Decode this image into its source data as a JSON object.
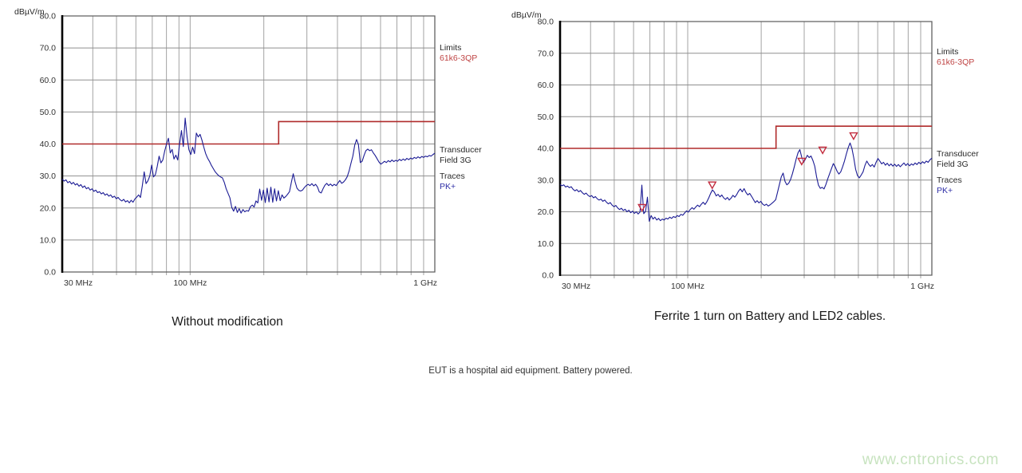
{
  "page": {
    "note": "EUT is a hospital aid equipment. Battery powered.",
    "watermark": "www.cntronics.com"
  },
  "colors": {
    "limit_red": "#b02b2b",
    "trace_blue": "#1b1b94",
    "marker_red": "#c22b3d",
    "legend_red": "#bf4444",
    "legend_blue": "#2f2fa6",
    "grid_h": "#8f8f8f",
    "grid_v": "#a3a3a3",
    "border": "#606060",
    "axis_black": "#000000",
    "watermark_green": "#c7e3bf"
  },
  "axis": {
    "unit_label": "dBµV/m",
    "y_ticks": [
      "80.0",
      "70.0",
      "60.0",
      "50.0",
      "40.0",
      "30.0",
      "20.0",
      "10.0",
      "0.0"
    ],
    "x_tick_labels": [
      "30 MHz",
      "100 MHz",
      "1 GHz"
    ],
    "decade_gridlines_MHz": [
      40,
      50,
      60,
      70,
      80,
      90,
      100,
      200,
      300,
      400,
      500,
      600,
      700,
      800,
      900
    ]
  },
  "legend": {
    "limits_label": "Limits",
    "limit_name": "61k6-3QP",
    "transducer_label": "Transducer",
    "transducer_name": "Field 3G",
    "traces_label": "Traces",
    "trace_name": "PK+"
  },
  "chart_data": [
    {
      "type": "line",
      "title": "Without modification",
      "x_axis": {
        "scale": "log",
        "min_MHz": 30,
        "max_MHz": 1000,
        "tick_labels": [
          "30 MHz",
          "100 MHz",
          "1 GHz"
        ]
      },
      "y_axis": {
        "label": "dBµV/m",
        "min": 0,
        "max": 80,
        "tick_step": 10
      },
      "limit": {
        "name": "61k6-3QP",
        "segments": [
          {
            "from_MHz": 30,
            "to_MHz": 230,
            "level_dB": 40
          },
          {
            "from_MHz": 230,
            "to_MHz": 1000,
            "level_dB": 47
          }
        ]
      },
      "trace": {
        "name": "PK+",
        "detector": "peak",
        "x_log_frac_start": 0.0,
        "x_log_frac_step": 0.005,
        "frequency_formula": "frequency_MHz = 30 * (1000/30)^x_log_frac",
        "levels_dB": [
          29.0,
          28.4,
          28.8,
          27.9,
          28.3,
          27.5,
          28.0,
          27.2,
          27.6,
          26.8,
          27.3,
          26.4,
          26.9,
          26.0,
          26.4,
          25.6,
          26.0,
          25.2,
          25.6,
          24.8,
          25.1,
          24.4,
          24.8,
          24.0,
          24.4,
          23.7,
          24.1,
          23.3,
          23.7,
          22.9,
          23.3,
          22.6,
          22.2,
          22.7,
          21.9,
          22.3,
          21.6,
          22.4,
          21.8,
          22.8,
          23.4,
          24.1,
          23.3,
          27.0,
          31.3,
          27.6,
          28.5,
          30.0,
          33.4,
          29.7,
          30.4,
          33.0,
          36.2,
          34.1,
          35.0,
          37.8,
          40.0,
          41.8,
          37.2,
          38.3,
          35.3,
          36.5,
          35.0,
          40.0,
          44.2,
          39.2,
          48.1,
          42.3,
          38.2,
          36.7,
          39.0,
          37.0,
          43.4,
          42.2,
          43.0,
          41.2,
          39.0,
          37.0,
          35.6,
          34.6,
          33.4,
          32.4,
          31.4,
          30.7,
          30.1,
          29.7,
          29.4,
          28.0,
          26.0,
          24.6,
          23.2,
          20.2,
          19.0,
          20.5,
          18.6,
          19.8,
          18.4,
          19.5,
          18.8,
          19.2,
          19.0,
          20.4,
          20.9,
          20.3,
          22.2,
          21.6,
          25.9,
          22.4,
          25.6,
          21.7,
          26.2,
          21.9,
          26.5,
          21.8,
          26.0,
          22.2,
          25.4,
          22.3,
          24.1,
          23.1,
          23.6,
          24.3,
          25.1,
          28.0,
          30.7,
          28.2,
          26.2,
          25.5,
          25.3,
          25.6,
          26.4,
          27.0,
          27.4,
          27.0,
          27.6,
          26.9,
          27.4,
          26.6,
          25.0,
          24.7,
          26.0,
          27.1,
          27.7,
          27.0,
          27.5,
          26.9,
          27.4,
          27.0,
          27.8,
          28.6,
          27.7,
          28.1,
          28.8,
          29.8,
          31.6,
          34.0,
          36.2,
          39.6,
          41.4,
          39.8,
          34.2,
          34.6,
          36.4,
          37.9,
          38.4,
          37.9,
          38.2,
          37.2,
          36.4,
          35.4,
          34.4,
          33.7,
          34.1,
          34.6,
          34.2,
          34.8,
          34.4,
          35.0,
          34.5,
          34.9,
          34.6,
          35.2,
          34.8,
          35.3,
          34.9,
          35.5,
          35.1,
          35.6,
          35.3,
          35.8,
          35.5,
          36.0,
          35.6,
          36.1,
          35.8,
          36.2,
          36.0,
          36.4,
          36.2,
          36.7,
          37.1
        ]
      },
      "markers": []
    },
    {
      "type": "line",
      "title": "Ferrite 1 turn on Battery and LED2 cables.",
      "x_axis": {
        "scale": "log",
        "min_MHz": 30,
        "max_MHz": 1000,
        "tick_labels": [
          "30 MHz",
          "100 MHz",
          "1 GHz"
        ]
      },
      "y_axis": {
        "label": "dBµV/m",
        "min": 0,
        "max": 80,
        "tick_step": 10
      },
      "limit": {
        "name": "61k6-3QP",
        "segments": [
          {
            "from_MHz": 30,
            "to_MHz": 230,
            "level_dB": 40
          },
          {
            "from_MHz": 230,
            "to_MHz": 1000,
            "level_dB": 47
          }
        ]
      },
      "trace": {
        "name": "PK+",
        "detector": "peak",
        "x_log_frac_start": 0.0,
        "x_log_frac_step": 0.005,
        "frequency_formula": "frequency_MHz = 30 * (1000/30)^x_log_frac",
        "levels_dB": [
          28.6,
          28.2,
          28.5,
          27.8,
          28.1,
          27.6,
          27.9,
          27.1,
          26.6,
          27.0,
          26.3,
          26.7,
          26.0,
          25.5,
          25.9,
          25.2,
          24.8,
          25.1,
          24.4,
          24.8,
          24.1,
          23.7,
          24.0,
          23.3,
          23.7,
          23.0,
          22.5,
          22.9,
          22.1,
          21.6,
          22.0,
          21.2,
          20.7,
          21.1,
          20.4,
          20.8,
          20.0,
          20.5,
          19.7,
          20.2,
          19.5,
          20.0,
          19.3,
          19.9,
          28.4,
          19.4,
          20.1,
          24.6,
          17.0,
          18.8,
          17.7,
          18.3,
          17.4,
          17.9,
          17.2,
          17.7,
          17.4,
          18.0,
          17.7,
          18.3,
          17.9,
          18.5,
          18.2,
          18.8,
          18.5,
          19.2,
          18.9,
          19.6,
          20.3,
          19.9,
          20.7,
          21.3,
          20.8,
          21.5,
          22.1,
          21.6,
          22.4,
          23.0,
          22.3,
          23.2,
          24.4,
          25.8,
          26.9,
          26.2,
          25.0,
          25.5,
          24.7,
          25.3,
          24.4,
          23.9,
          24.5,
          23.7,
          24.3,
          25.2,
          24.6,
          25.4,
          26.5,
          27.2,
          26.3,
          27.3,
          26.1,
          25.3,
          25.8,
          24.9,
          23.9,
          22.9,
          23.5,
          22.8,
          23.3,
          22.4,
          22.0,
          22.4,
          21.8,
          22.2,
          22.7,
          23.2,
          23.8,
          26.2,
          28.6,
          31.0,
          32.2,
          29.6,
          28.5,
          29.0,
          30.2,
          32.0,
          34.2,
          36.6,
          38.6,
          39.6,
          37.2,
          35.6,
          36.6,
          37.8,
          37.1,
          37.6,
          36.2,
          34.4,
          31.0,
          28.4,
          27.4,
          27.7,
          27.2,
          28.6,
          30.4,
          32.0,
          33.6,
          35.2,
          34.2,
          32.8,
          31.9,
          32.6,
          34.2,
          36.0,
          38.2,
          40.2,
          41.7,
          40.0,
          37.0,
          33.4,
          31.4,
          30.7,
          31.6,
          32.6,
          34.6,
          36.0,
          35.0,
          34.3,
          34.9,
          34.1,
          35.6,
          36.8,
          36.0,
          35.1,
          35.6,
          34.7,
          35.3,
          34.5,
          35.1,
          34.4,
          35.0,
          34.3,
          34.9,
          34.2,
          34.8,
          35.4,
          34.6,
          35.2,
          34.5,
          35.1,
          34.7,
          35.4,
          34.9,
          35.6,
          35.1,
          35.8,
          35.3,
          36.0,
          35.6,
          36.4,
          36.9
        ]
      },
      "markers": [
        {
          "freq_MHz": 65,
          "level_dB": 21.4
        },
        {
          "freq_MHz": 126,
          "level_dB": 28.5
        },
        {
          "freq_MHz": 293,
          "level_dB": 36.0
        },
        {
          "freq_MHz": 357,
          "level_dB": 39.5
        },
        {
          "freq_MHz": 478,
          "level_dB": 44.0
        }
      ]
    }
  ]
}
